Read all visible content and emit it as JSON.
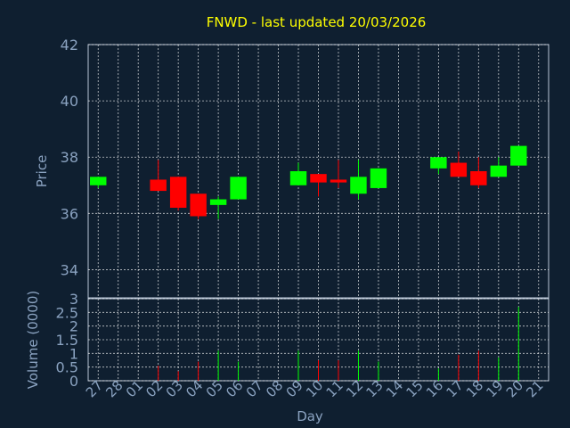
{
  "chart_data": {
    "type": "candlestick",
    "title": "FNWD - last updated 20/03/2026",
    "xlabel": "Day",
    "price_panel": {
      "ylabel": "Price",
      "ylim": [
        33,
        42
      ],
      "yticks": [
        "34",
        "36",
        "38",
        "40",
        "42"
      ]
    },
    "volume_panel": {
      "ylabel": "Volume (0000)",
      "ylim": [
        0,
        3
      ],
      "yticks": [
        "0",
        "0.5",
        "1",
        "1.5",
        "2",
        "2.5",
        "3"
      ]
    },
    "x_tick_labels": [
      "27",
      "28",
      "01",
      "02",
      "03",
      "04",
      "05",
      "06",
      "07",
      "08",
      "09",
      "10",
      "11",
      "12",
      "13",
      "14",
      "15",
      "16",
      "17",
      "18",
      "19",
      "20",
      "21"
    ],
    "grid": true,
    "colors": {
      "background": "#0f1f30",
      "title": "#ffff00",
      "axis_text": "#8aa2c0",
      "up": "#00ff00",
      "down": "#ff0000"
    },
    "candles": [
      {
        "day": "27",
        "open": 37.0,
        "high": 37.3,
        "low": 36.9,
        "close": 37.3,
        "volume": 0.0
      },
      {
        "day": "02",
        "open": 37.2,
        "high": 37.9,
        "low": 36.8,
        "close": 36.8,
        "volume": 0.55
      },
      {
        "day": "03",
        "open": 37.3,
        "high": 37.3,
        "low": 36.1,
        "close": 36.2,
        "volume": 0.35
      },
      {
        "day": "04",
        "open": 36.7,
        "high": 36.7,
        "low": 35.8,
        "close": 35.9,
        "volume": 0.7
      },
      {
        "day": "05",
        "open": 36.3,
        "high": 36.6,
        "low": 35.8,
        "close": 36.5,
        "volume": 1.1
      },
      {
        "day": "06",
        "open": 36.5,
        "high": 37.3,
        "low": 36.5,
        "close": 37.3,
        "volume": 0.7
      },
      {
        "day": "09",
        "open": 37.0,
        "high": 37.8,
        "low": 37.0,
        "close": 37.5,
        "volume": 1.1
      },
      {
        "day": "10",
        "open": 37.4,
        "high": 37.4,
        "low": 36.6,
        "close": 37.1,
        "volume": 0.75
      },
      {
        "day": "11",
        "open": 37.2,
        "high": 37.9,
        "low": 36.9,
        "close": 37.1,
        "volume": 0.75
      },
      {
        "day": "12",
        "open": 36.7,
        "high": 37.9,
        "low": 36.5,
        "close": 37.3,
        "volume": 1.1
      },
      {
        "day": "13",
        "open": 36.9,
        "high": 37.6,
        "low": 36.9,
        "close": 37.6,
        "volume": 0.7
      },
      {
        "day": "16",
        "open": 37.6,
        "high": 38.0,
        "low": 37.4,
        "close": 38.0,
        "volume": 0.45
      },
      {
        "day": "17",
        "open": 37.8,
        "high": 38.2,
        "low": 37.3,
        "close": 37.3,
        "volume": 0.95
      },
      {
        "day": "18",
        "open": 37.5,
        "high": 38.0,
        "low": 36.9,
        "close": 37.0,
        "volume": 1.1
      },
      {
        "day": "19",
        "open": 37.3,
        "high": 38.0,
        "low": 37.3,
        "close": 37.7,
        "volume": 0.85
      },
      {
        "day": "20",
        "open": 37.7,
        "high": 38.4,
        "low": 37.7,
        "close": 38.4,
        "volume": 2.7
      }
    ]
  }
}
